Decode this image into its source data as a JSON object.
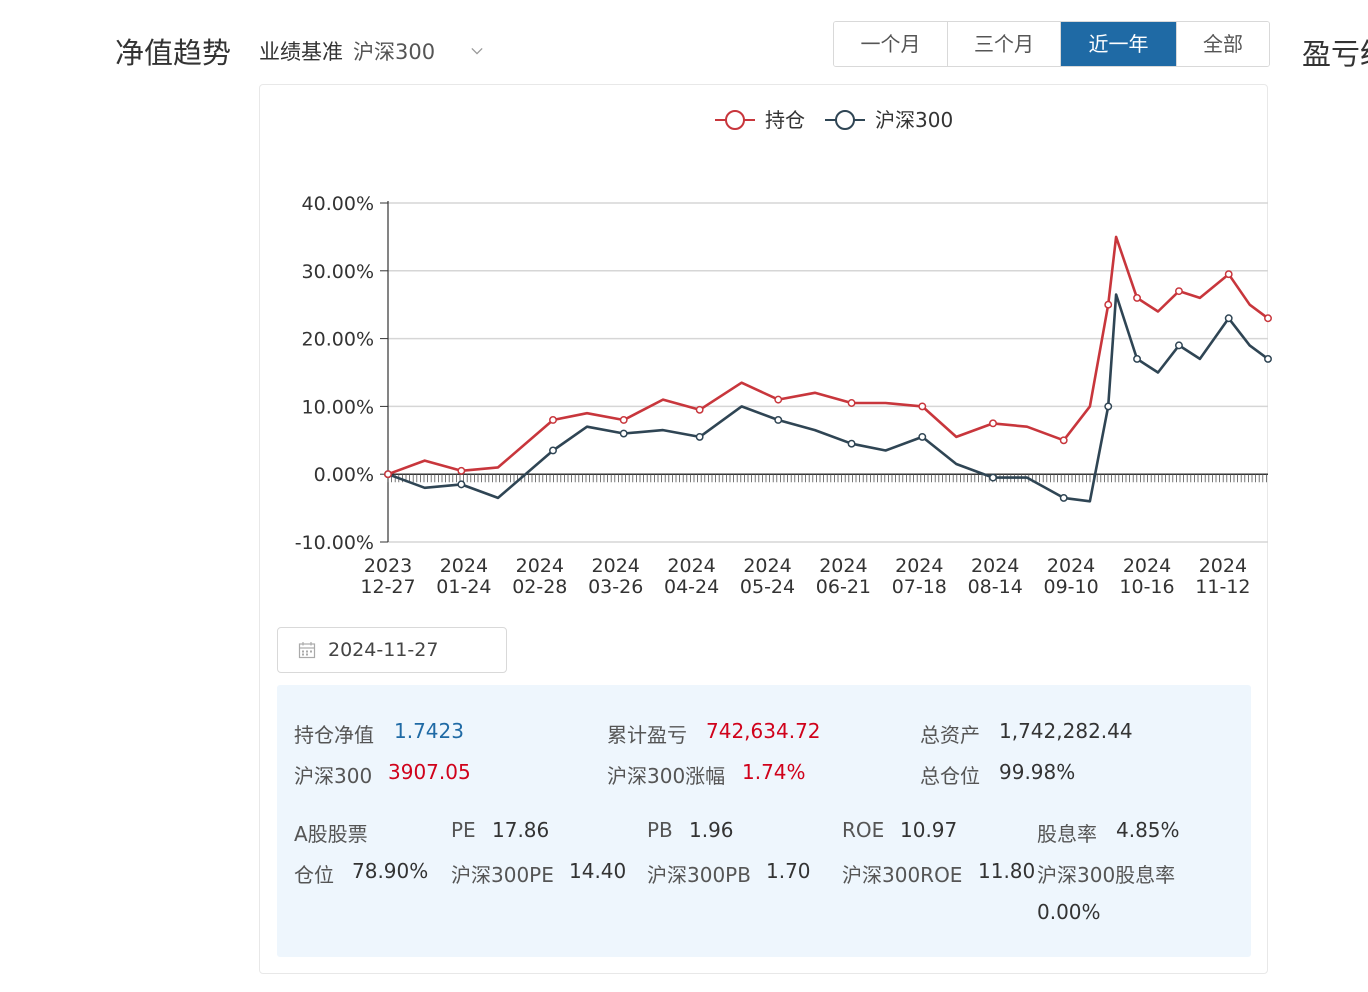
{
  "header": {
    "title": "净值趋势",
    "benchmark_label": "业绩基准",
    "benchmark_value": "沪深300",
    "right_title": "盈亏统"
  },
  "periods": [
    {
      "label": "一个月",
      "active": false
    },
    {
      "label": "三个月",
      "active": false
    },
    {
      "label": "近一年",
      "active": true
    },
    {
      "label": "全部",
      "active": false
    }
  ],
  "date_picker": {
    "value": "2024-11-27"
  },
  "summary": {
    "holding_nav_label": "持仓净值",
    "holding_nav_value": "1.7423",
    "cum_pnl_label": "累计盈亏",
    "cum_pnl_value": "742,634.72",
    "total_assets_label": "总资产",
    "total_assets_value": "1,742,282.44",
    "index_label": "沪深300",
    "index_value": "3907.05",
    "index_change_label": "沪深300涨幅",
    "index_change_value": "1.74%",
    "position_label": "总仓位",
    "position_value": "99.98%"
  },
  "a_share": {
    "title": "A股股票",
    "pe_label": "PE",
    "pe_value": "17.86",
    "pb_label": "PB",
    "pb_value": "1.96",
    "roe_label": "ROE",
    "roe_value": "10.97",
    "div_label": "股息率",
    "div_value": "4.85%",
    "pos_label": "仓位",
    "pos_value": "78.90%",
    "idx_pe_label": "沪深300PE",
    "idx_pe_value": "14.40",
    "idx_pb_label": "沪深300PB",
    "idx_pb_value": "1.70",
    "idx_roe_label": "沪深300ROE",
    "idx_roe_value": "11.80",
    "idx_div_label": "沪深300股息率",
    "idx_div_value": "0.00%"
  },
  "colors": {
    "holding": "#c8363c",
    "index": "#2f4554",
    "active": "#1f6aa5"
  },
  "chart_data": {
    "type": "line",
    "y_tick_labels": [
      "40.00%",
      "30.00%",
      "20.00%",
      "10.00%",
      "0.00%",
      "-10.00%"
    ],
    "ylim": [
      -10,
      40
    ],
    "x_tick_labels": [
      [
        "2023",
        "12-27"
      ],
      [
        "2024",
        "01-24"
      ],
      [
        "2024",
        "02-28"
      ],
      [
        "2024",
        "03-26"
      ],
      [
        "2024",
        "04-24"
      ],
      [
        "2024",
        "05-24"
      ],
      [
        "2024",
        "06-21"
      ],
      [
        "2024",
        "07-18"
      ],
      [
        "2024",
        "08-14"
      ],
      [
        "2024",
        "09-10"
      ],
      [
        "2024",
        "10-16"
      ],
      [
        "2024",
        "11-12"
      ]
    ],
    "grid": true,
    "legend_position": "top-center",
    "x": [
      "2023-12-27",
      "2024-01-10",
      "2024-01-24",
      "2024-02-07",
      "2024-02-28",
      "2024-03-12",
      "2024-03-26",
      "2024-04-10",
      "2024-04-24",
      "2024-05-10",
      "2024-05-24",
      "2024-06-07",
      "2024-06-21",
      "2024-07-04",
      "2024-07-18",
      "2024-07-31",
      "2024-08-14",
      "2024-08-27",
      "2024-09-10",
      "2024-09-20",
      "2024-09-27",
      "2024-09-30",
      "2024-10-08",
      "2024-10-16",
      "2024-10-24",
      "2024-11-01",
      "2024-11-12",
      "2024-11-20",
      "2024-11-27"
    ],
    "series": [
      {
        "name": "持仓",
        "values": [
          0.0,
          2.0,
          0.5,
          1.0,
          8.0,
          9.0,
          8.0,
          11.0,
          9.5,
          13.5,
          11.0,
          12.0,
          10.5,
          10.5,
          10.0,
          5.5,
          7.5,
          7.0,
          5.0,
          10.0,
          25.0,
          35.0,
          26.0,
          24.0,
          27.0,
          26.0,
          29.5,
          25.0,
          23.0
        ]
      },
      {
        "name": "沪深300",
        "values": [
          0.0,
          -2.0,
          -1.5,
          -3.5,
          3.5,
          7.0,
          6.0,
          6.5,
          5.5,
          10.0,
          8.0,
          6.5,
          4.5,
          3.5,
          5.5,
          1.5,
          -0.5,
          -0.5,
          -3.5,
          -4.0,
          10.0,
          26.5,
          17.0,
          15.0,
          19.0,
          17.0,
          23.0,
          19.0,
          17.0
        ]
      }
    ]
  }
}
